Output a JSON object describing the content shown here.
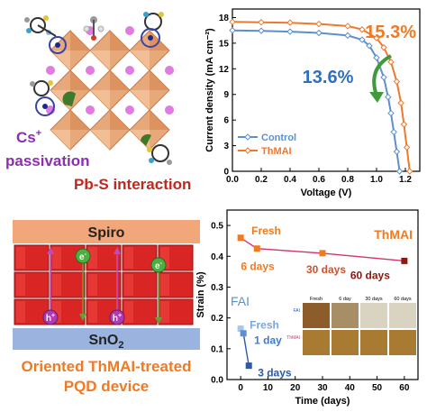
{
  "colors": {
    "control": "#5b8fd0",
    "thmai": "#f0782a",
    "red_text": "#c0281e",
    "purple_text": "#8b2fb0",
    "orange_text": "#f07a22",
    "blue_text": "#2f6fc0",
    "octahedron": "#e8a97a",
    "cs_atom": "#e27be0",
    "spiro_bar": "#f2a77a",
    "sno2_bar": "#9bb4df",
    "cube": "#d92524",
    "pathway_arrow": "#6f9a3a"
  },
  "top_left": {
    "cs_label": "Cs",
    "cs_sup": "+",
    "passivation_label": "passivation",
    "pbs_label": "Pb-S interaction"
  },
  "bottom_left": {
    "spiro_label": "Spiro",
    "sno2_label": "SnO",
    "sno2_sub": "2",
    "electron_label": "e",
    "electron_sup": "-",
    "hole_label": "h",
    "hole_sup": "+",
    "device_line1": "Oriented ThMAI-treated",
    "device_line2": "PQD device"
  },
  "chart_data": [
    {
      "type": "line",
      "title": "",
      "xlabel": "Voltage (V)",
      "ylabel": "Current density (mA cm⁻²)",
      "xlim": [
        0.0,
        1.3
      ],
      "ylim": [
        0,
        19
      ],
      "xticks": [
        "0.0",
        "0.2",
        "0.4",
        "0.6",
        "0.8",
        "1.0",
        "1.2"
      ],
      "yticks": [
        "0",
        "3",
        "6",
        "9",
        "12",
        "15",
        "18"
      ],
      "legend_position": "bottom-left",
      "series": [
        {
          "name": "Control",
          "marker": "diamond",
          "points": [
            [
              0.0,
              16.5
            ],
            [
              0.2,
              16.45
            ],
            [
              0.4,
              16.35
            ],
            [
              0.6,
              16.2
            ],
            [
              0.8,
              15.9
            ],
            [
              0.9,
              15.4
            ],
            [
              0.95,
              14.7
            ],
            [
              1.0,
              13.3
            ],
            [
              1.05,
              11.0
            ],
            [
              1.08,
              8.7
            ],
            [
              1.1,
              6.8
            ],
            [
              1.12,
              4.6
            ],
            [
              1.14,
              2.3
            ],
            [
              1.16,
              0.0
            ]
          ]
        },
        {
          "name": "ThMAI",
          "marker": "diamond",
          "points": [
            [
              0.0,
              17.5
            ],
            [
              0.2,
              17.45
            ],
            [
              0.4,
              17.4
            ],
            [
              0.6,
              17.25
            ],
            [
              0.8,
              17.0
            ],
            [
              0.9,
              16.6
            ],
            [
              1.0,
              15.6
            ],
            [
              1.05,
              14.5
            ],
            [
              1.1,
              12.8
            ],
            [
              1.14,
              10.5
            ],
            [
              1.17,
              8.0
            ],
            [
              1.19,
              5.5
            ],
            [
              1.21,
              2.8
            ],
            [
              1.23,
              0.0
            ]
          ]
        }
      ],
      "annotations": [
        {
          "text": "15.3%",
          "color": "#f07a22"
        },
        {
          "text": "13.6%",
          "color": "#2f6fc0"
        }
      ]
    },
    {
      "type": "line",
      "title": "",
      "xlabel": "Time (days)",
      "ylabel": "Strain (%)",
      "xlim": [
        -5,
        65
      ],
      "ylim": [
        0.0,
        0.55
      ],
      "xticks": [
        "0",
        "10",
        "20",
        "30",
        "40",
        "50",
        "60"
      ],
      "yticks": [
        "0.0",
        "0.1",
        "0.2",
        "0.3",
        "0.4",
        "0.5"
      ],
      "series": [
        {
          "name": "ThMAI",
          "points": [
            [
              0,
              0.46
            ],
            [
              6,
              0.425
            ],
            [
              30,
              0.41
            ],
            [
              60,
              0.385
            ]
          ],
          "marker_colors": [
            "#f07a22",
            "#f07a22",
            "#f07a22",
            "#8b1a10"
          ],
          "point_labels": [
            "Fresh",
            "6 days",
            "30 days",
            "60 days"
          ]
        },
        {
          "name": "FAI",
          "points": [
            [
              0,
              0.165
            ],
            [
              1,
              0.15
            ],
            [
              3,
              0.045
            ]
          ],
          "marker_colors": [
            "#a7c6ea",
            "#5b8fd0",
            "#2a5aa8"
          ],
          "point_labels": [
            "Fresh",
            "1 day",
            "3 days"
          ]
        }
      ],
      "inset": {
        "column_headers": [
          "Fresh",
          "6 day",
          "30 days",
          "60 days"
        ],
        "row_labels": [
          "FAI",
          "ThMAI"
        ],
        "fai_colors": [
          "#8c5c2a",
          "#a88e66",
          "#d9d4c2",
          "#d9d4c2"
        ],
        "thmai_colors": [
          "#a87a32",
          "#a87a32",
          "#a87a32",
          "#a87a32"
        ]
      }
    }
  ]
}
